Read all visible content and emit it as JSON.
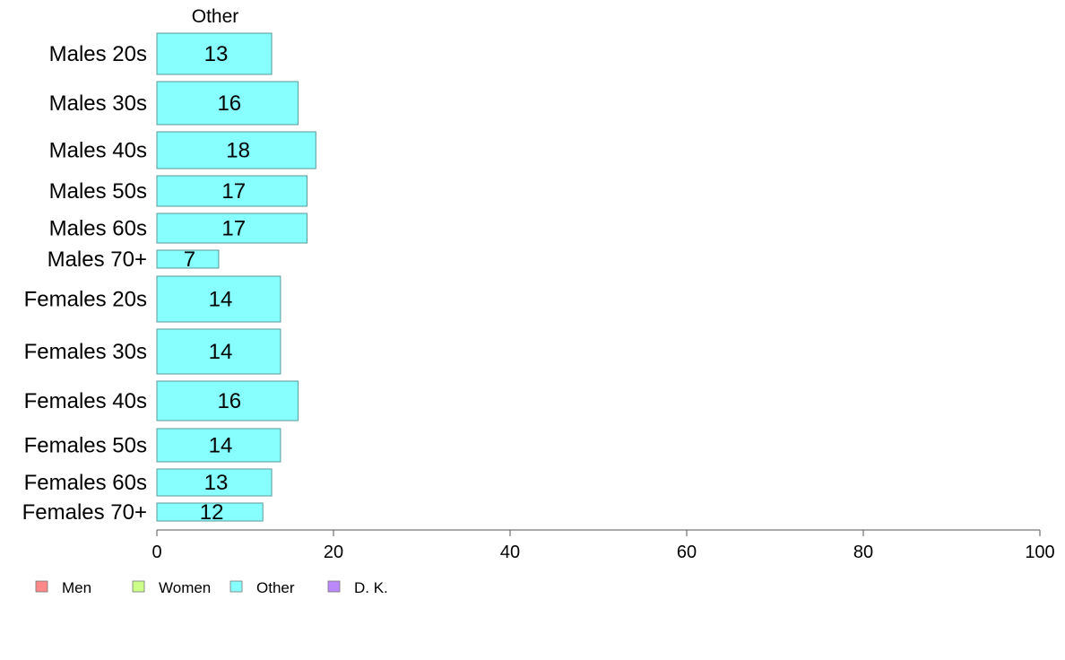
{
  "chart_data": {
    "type": "bar",
    "orientation": "horizontal",
    "panel_title": "Other",
    "categories": [
      "Males 20s",
      "Males 30s",
      "Males 40s",
      "Males 50s",
      "Males 60s",
      "Males 70+",
      "Females 20s",
      "Females 30s",
      "Females 40s",
      "Females 50s",
      "Females 60s",
      "Females 70+"
    ],
    "series": [
      {
        "name": "Other",
        "values": [
          13,
          16,
          18,
          17,
          17,
          7,
          14,
          14,
          16,
          14,
          13,
          12
        ]
      }
    ],
    "xlim": [
      0,
      100
    ],
    "xticks": [
      0,
      20,
      40,
      60,
      80,
      100
    ],
    "grid": false,
    "bar_color": "#88ffff",
    "bar_edge_color": "#5a9a9a",
    "legend": {
      "placement": "bottom-left",
      "items": [
        {
          "label": "Men",
          "color": "#ff8888"
        },
        {
          "label": "Women",
          "color": "#ccff88"
        },
        {
          "label": "Other",
          "color": "#88ffff"
        },
        {
          "label": "D. K.",
          "color": "#bb88ff"
        }
      ]
    }
  }
}
